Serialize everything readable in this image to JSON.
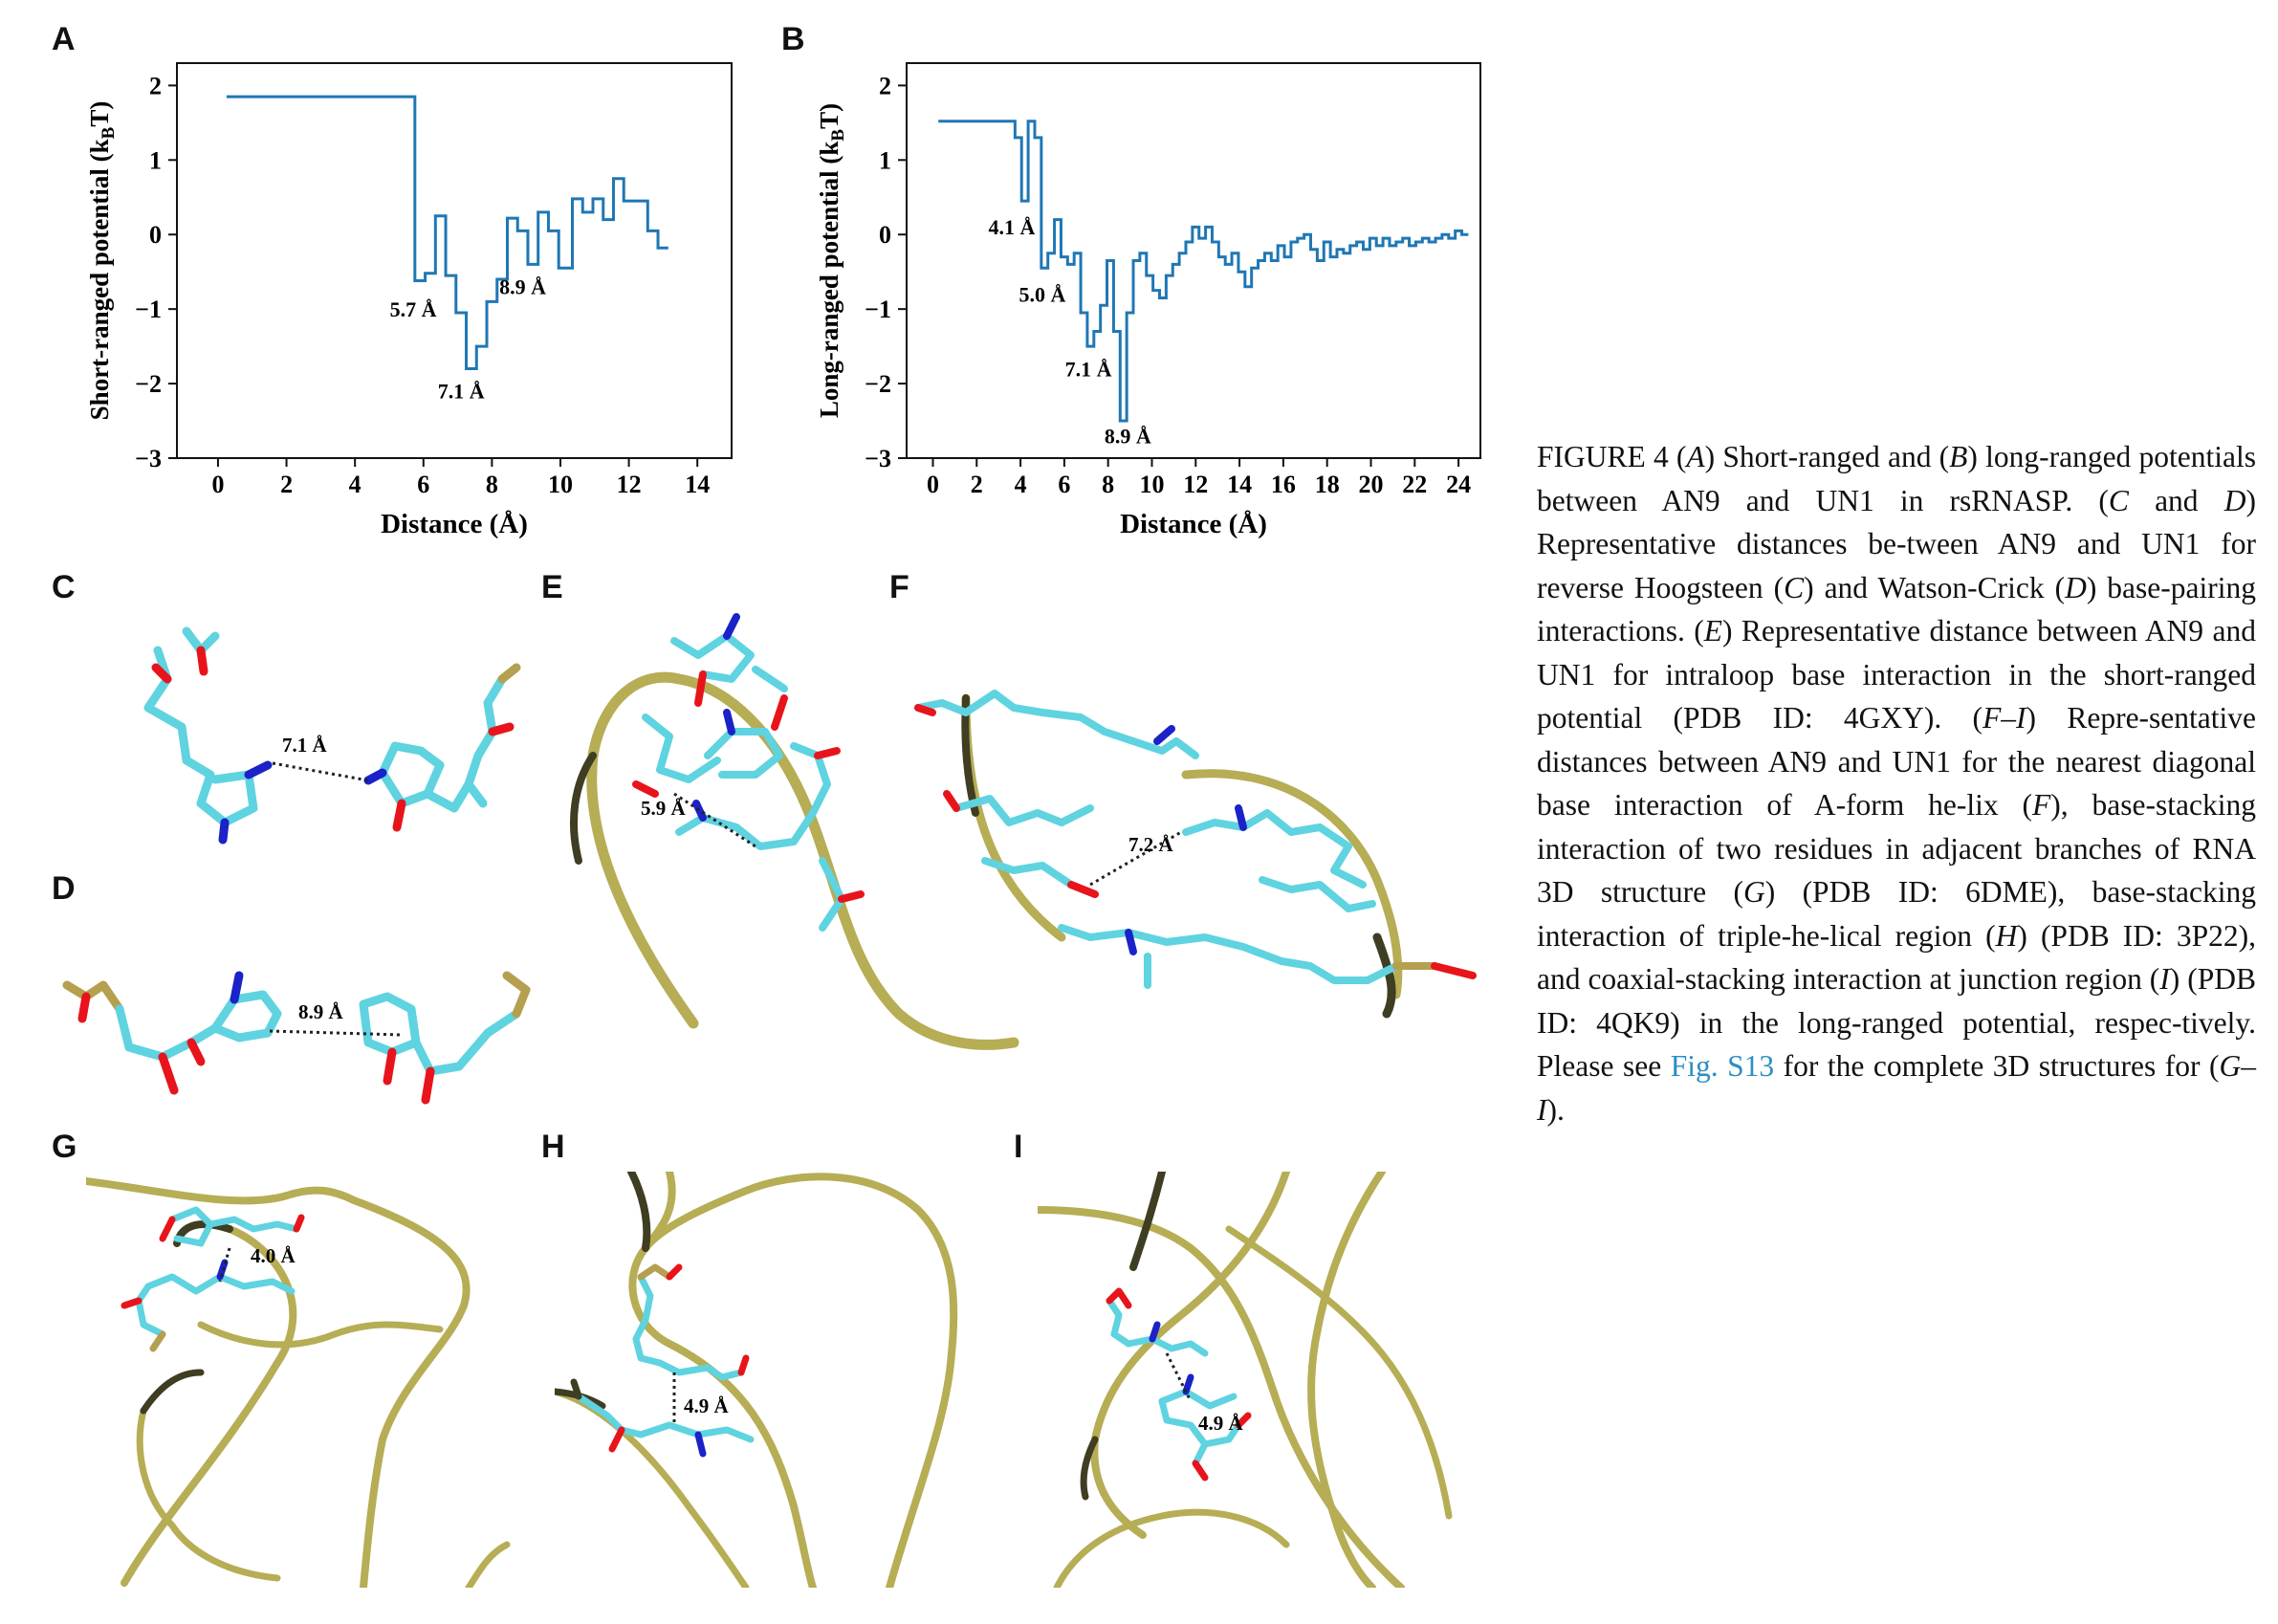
{
  "panels": {
    "A": "A",
    "B": "B",
    "C": "C",
    "D": "D",
    "E": "E",
    "F": "F",
    "G": "G",
    "H": "H",
    "I": "I"
  },
  "chart_data": [
    {
      "type": "line",
      "panel": "A",
      "step": true,
      "xlabel": "Distance (Å)",
      "ylabel": "Short-ranged potential (kBT)",
      "xlim": [
        -1.2,
        15
      ],
      "ylim": [
        -3,
        2.3
      ],
      "xticks": [
        0,
        2,
        4,
        6,
        8,
        10,
        12,
        14
      ],
      "yticks": [
        -3,
        -2,
        -1,
        0,
        1,
        2
      ],
      "series": [
        {
          "color": "#1f77b4",
          "x": [
            0.25,
            5.35,
            5.75,
            6.05,
            6.35,
            6.65,
            6.95,
            7.25,
            7.55,
            7.85,
            8.15,
            8.45,
            8.75,
            9.05,
            9.35,
            9.65,
            9.95,
            10.35,
            10.65,
            10.95,
            11.25,
            11.55,
            11.85,
            12.25,
            12.55,
            12.85
          ],
          "y": [
            1.85,
            1.85,
            -0.62,
            -0.52,
            0.25,
            -0.55,
            -1.05,
            -1.8,
            -1.5,
            -0.9,
            -0.6,
            0.22,
            0.05,
            -0.4,
            0.3,
            0.05,
            -0.45,
            0.48,
            0.3,
            0.48,
            0.2,
            0.75,
            0.45,
            0.45,
            0.05,
            -0.18
          ]
        }
      ],
      "annotations": [
        {
          "text": "5.7 Å",
          "x": 5.7,
          "y": -1.1
        },
        {
          "text": "7.1 Å",
          "x": 7.1,
          "y": -2.2
        },
        {
          "text": "8.9 Å",
          "x": 8.9,
          "y": -0.8
        }
      ]
    },
    {
      "type": "line",
      "panel": "B",
      "step": true,
      "xlabel": "Distance (Å)",
      "ylabel": "Long-ranged potential (kBT)",
      "xlim": [
        -1.2,
        25
      ],
      "ylim": [
        -3,
        2.3
      ],
      "xticks": [
        0,
        2,
        4,
        6,
        8,
        10,
        12,
        14,
        16,
        18,
        20,
        22,
        24
      ],
      "yticks": [
        -3,
        -2,
        -1,
        0,
        1,
        2
      ],
      "series": [
        {
          "color": "#1f77b4",
          "x": [
            0.25,
            3.75,
            4.05,
            4.35,
            4.65,
            4.95,
            5.25,
            5.55,
            5.85,
            6.15,
            6.45,
            6.75,
            7.05,
            7.35,
            7.65,
            7.95,
            8.25,
            8.55,
            8.85,
            9.15,
            9.45,
            9.75,
            10.05,
            10.35,
            10.65,
            10.95,
            11.25,
            11.55,
            11.85,
            12.15,
            12.45,
            12.75,
            13.05,
            13.35,
            13.65,
            13.95,
            14.25,
            14.55,
            14.85,
            15.15,
            15.45,
            15.75,
            16.05,
            16.35,
            16.65,
            16.95,
            17.25,
            17.55,
            17.85,
            18.15,
            18.45,
            18.75,
            19.05,
            19.35,
            19.65,
            19.95,
            20.25,
            20.55,
            20.85,
            21.15,
            21.45,
            21.75,
            22.05,
            22.35,
            22.65,
            22.95,
            23.25,
            23.55,
            23.85,
            24.15
          ],
          "y": [
            1.52,
            1.3,
            0.45,
            1.52,
            1.3,
            -0.45,
            -0.25,
            0.2,
            -0.3,
            -0.4,
            -0.25,
            -1.05,
            -1.5,
            -1.3,
            -0.95,
            -0.35,
            -1.3,
            -2.5,
            -1.05,
            -0.35,
            -0.25,
            -0.55,
            -0.75,
            -0.85,
            -0.55,
            -0.4,
            -0.25,
            -0.1,
            0.1,
            -0.05,
            0.1,
            -0.1,
            -0.3,
            -0.4,
            -0.25,
            -0.5,
            -0.7,
            -0.45,
            -0.35,
            -0.25,
            -0.35,
            -0.15,
            -0.3,
            -0.1,
            -0.05,
            0.0,
            -0.2,
            -0.35,
            -0.1,
            -0.3,
            -0.2,
            -0.25,
            -0.15,
            -0.1,
            -0.2,
            -0.05,
            -0.15,
            -0.05,
            -0.15,
            -0.1,
            -0.05,
            -0.15,
            -0.1,
            -0.05,
            -0.1,
            -0.05,
            0.0,
            -0.05,
            0.05,
            0.0
          ]
        }
      ],
      "annotations": [
        {
          "text": "4.1 Å",
          "x": 3.6,
          "y": 0.0
        },
        {
          "text": "5.0 Å",
          "x": 5.0,
          "y": -0.9
        },
        {
          "text": "7.1 Å",
          "x": 7.1,
          "y": -1.9
        },
        {
          "text": "8.9 Å",
          "x": 8.9,
          "y": -2.8
        }
      ]
    }
  ],
  "structure_labels": {
    "C": "7.1 Å",
    "D": "8.9 Å",
    "E": "5.9 Å",
    "F": "7.2 Å",
    "G": "4.0 Å",
    "H": "4.9 Å",
    "I": "4.9 Å"
  },
  "colors": {
    "carbon": "#5fd3e0",
    "oxygen": "#e8141b",
    "nitrogen": "#1a22c8",
    "phosphorus": "#b5a050",
    "backbone": "#b6ad55",
    "backbone_dark": "#3f3d22",
    "line": "#1f77b4"
  },
  "caption": {
    "s1": "FIGURE 4  (",
    "s2": "A",
    "s3": ") Short-ranged and (",
    "s4": "B",
    "s5": ") long-ranged potentials between AN9 and UN1 in rsRNASP. (",
    "s6": "C",
    "s7": " and ",
    "s8": "D",
    "s9": ") Representative distances be-tween AN9 and UN1 for reverse Hoogsteen (",
    "s10": "C",
    "s11": ") and Watson-Crick (",
    "s12": "D",
    "s13": ") base-pairing interactions. (",
    "s14": "E",
    "s15": ") Representative distance between AN9 and UN1 for intraloop base interaction in the short-ranged potential (PDB ID: 4GXY). (",
    "s16": "F–I",
    "s17": ") Repre-sentative distances between AN9 and UN1 for the nearest diagonal base interaction of A-form he-lix (",
    "s18": "F",
    "s19": "), base-stacking interaction of two residues in adjacent branches of RNA 3D structure (",
    "s20": "G",
    "s21": ") (PDB ID: 6DME), base-stacking interaction of triple-he-lical region (",
    "s22": "H",
    "s23": ") (PDB ID: 3P22), and coaxial-stacking interaction at junction region (",
    "s24": "I",
    "s25": ") (PDB ID: 4QK9) in the long-ranged potential, respec-tively. Please see ",
    "link": "Fig. S13",
    "s26": " for the complete 3D structures for (",
    "s27": "G–I",
    "s28": ")."
  }
}
